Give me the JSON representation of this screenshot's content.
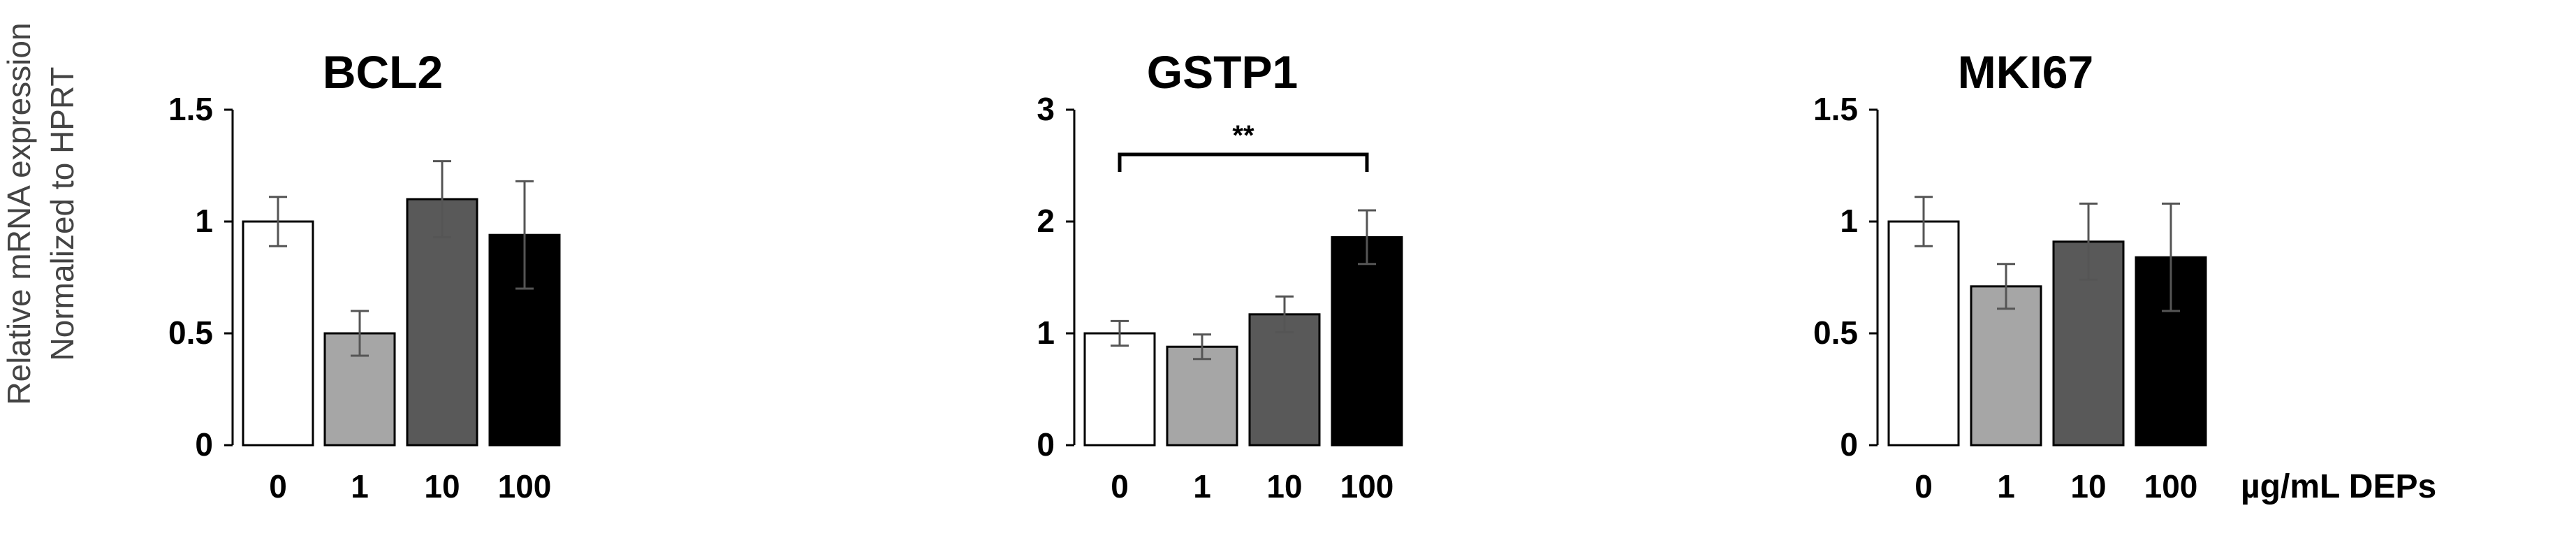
{
  "figure": {
    "ylabel_line1": "Relative mRNA expression",
    "ylabel_line2": "Normalized to HPRT",
    "x_unit": "µg/mL DEPs"
  },
  "colors": [
    "#ffffff",
    "#a6a6a6",
    "#595959",
    "#000000"
  ],
  "chart_data": [
    {
      "type": "bar",
      "title": "BCL2",
      "categories": [
        "0",
        "1",
        "10",
        "100"
      ],
      "values": [
        1.0,
        0.5,
        1.1,
        0.94
      ],
      "errors": [
        0.11,
        0.1,
        0.17,
        0.24
      ],
      "ylim": [
        0,
        1.5
      ],
      "yticks": [
        "0",
        "0.5",
        "1",
        "1.5"
      ],
      "xlabel": "",
      "ylabel": "Relative mRNA expression Normalized to HPRT",
      "grid": false,
      "annotations": []
    },
    {
      "type": "bar",
      "title": "GSTP1",
      "categories": [
        "0",
        "1",
        "10",
        "100"
      ],
      "values": [
        1.0,
        0.88,
        1.17,
        1.86
      ],
      "errors": [
        0.11,
        0.11,
        0.16,
        0.24
      ],
      "ylim": [
        0,
        3
      ],
      "yticks": [
        "0",
        "1",
        "2",
        "3"
      ],
      "xlabel": "",
      "ylabel": "",
      "grid": false,
      "annotations": [
        {
          "text": "**",
          "from": "0",
          "to": "100",
          "y": 2.6
        }
      ]
    },
    {
      "type": "bar",
      "title": "MKI67",
      "categories": [
        "0",
        "1",
        "10",
        "100"
      ],
      "values": [
        1.0,
        0.71,
        0.91,
        0.84
      ],
      "errors": [
        0.11,
        0.1,
        0.17,
        0.24
      ],
      "ylim": [
        0,
        1.5
      ],
      "yticks": [
        "0",
        "0.5",
        "1",
        "1.5"
      ],
      "xlabel": "µg/mL DEPs",
      "ylabel": "",
      "grid": false,
      "annotations": []
    }
  ]
}
